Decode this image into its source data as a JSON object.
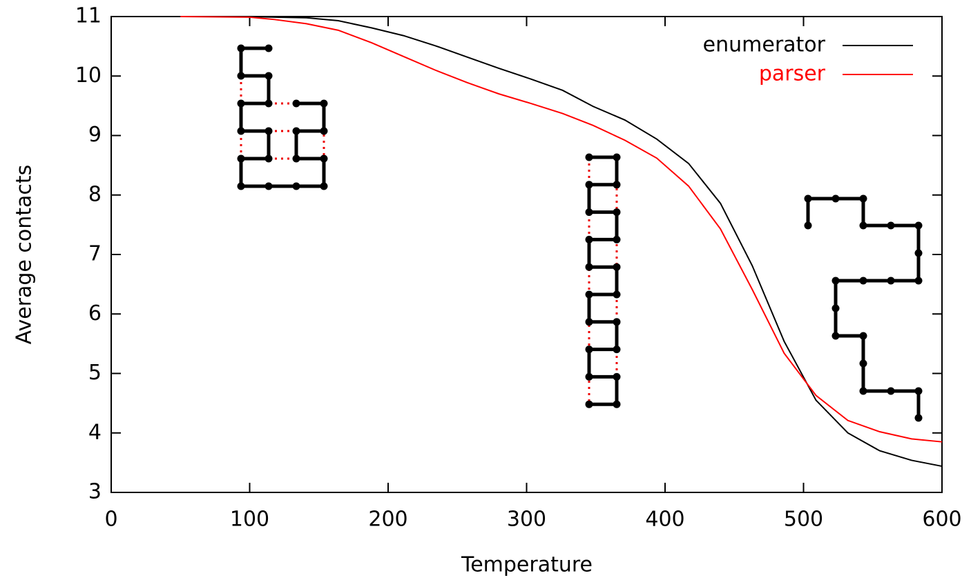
{
  "chart_data": {
    "type": "line",
    "xlabel": "Temperature",
    "ylabel": "Average contacts",
    "x": [
      50,
      100,
      118,
      141,
      164,
      188,
      211,
      234,
      257,
      280,
      303,
      326,
      348,
      371,
      394,
      417,
      440,
      463,
      486,
      509,
      532,
      555,
      578,
      600
    ],
    "series": [
      {
        "name": "enumerator",
        "color": "#000000",
        "values": [
          11,
          11,
          10.99,
          10.98,
          10.93,
          10.81,
          10.68,
          10.51,
          10.32,
          10.13,
          9.95,
          9.76,
          9.49,
          9.26,
          8.94,
          8.53,
          7.86,
          6.81,
          5.54,
          4.55,
          4.0,
          3.7,
          3.54,
          3.44
        ]
      },
      {
        "name": "parser",
        "color": "#ff0000",
        "values": [
          11,
          10.99,
          10.95,
          10.88,
          10.77,
          10.56,
          10.33,
          10.1,
          9.89,
          9.7,
          9.54,
          9.37,
          9.17,
          8.92,
          8.62,
          8.15,
          7.43,
          6.41,
          5.34,
          4.63,
          4.21,
          4.02,
          3.9,
          3.85
        ]
      }
    ],
    "xlim": [
      0,
      600
    ],
    "xticks": [
      0,
      100,
      200,
      300,
      400,
      500,
      600
    ],
    "ylim": [
      3,
      11
    ],
    "yticks": [
      3,
      4,
      5,
      6,
      7,
      8,
      9,
      10,
      11
    ],
    "legend": "top-right"
  }
}
